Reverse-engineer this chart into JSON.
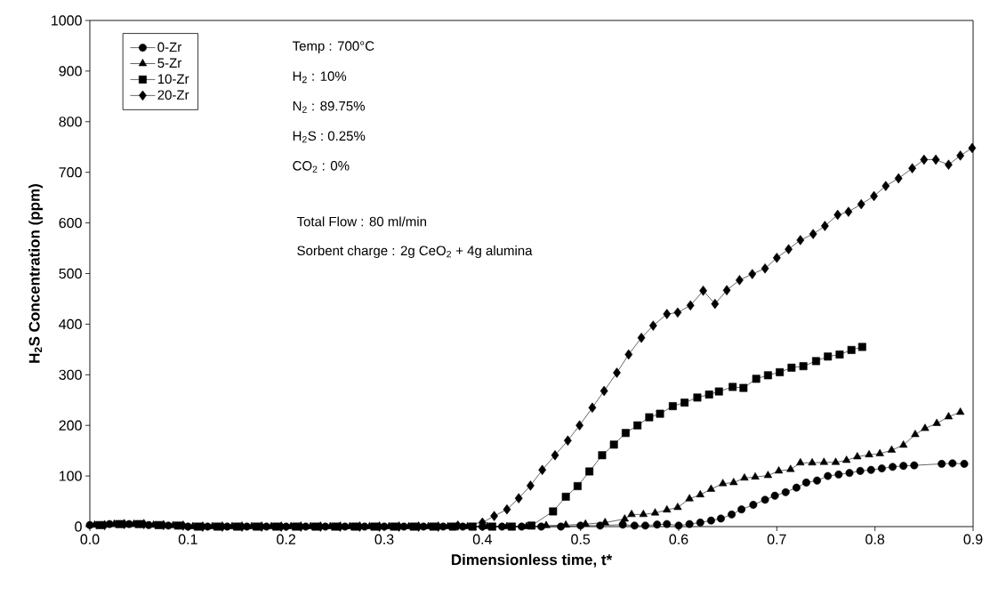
{
  "chart_data": {
    "type": "line",
    "xlabel": "Dimensionless time, t*",
    "ylabel": "H$_{2}$S Concentration (ppm)",
    "xlim": [
      0,
      0.9
    ],
    "ylim": [
      0,
      1000
    ],
    "xticks": [
      {
        "value": 0,
        "label": "0.0"
      },
      0.1,
      0.2,
      0.3,
      0.4,
      0.5,
      0.6,
      0.7,
      0.8,
      0.9
    ],
    "yticks": [
      0,
      100,
      200,
      300,
      400,
      500,
      600,
      700,
      800,
      900,
      1000
    ],
    "grid": false,
    "legend": "top left",
    "annotations": [
      "Temp : 700°C",
      "H$_{2}$ : 10%",
      "N$_{2}$ : 89.75%",
      "H$_{2}$S : 0.25%",
      "CO$_{2}$ : 0%",
      "Total Flow : 80 ml/min",
      "Sorbent charge : 2g CeO$_{2}$ + 4g alumina"
    ],
    "series": [
      {
        "name": "0-Zr",
        "color": "#000000",
        "marker": "circle",
        "x": [
          0,
          0.02,
          0.04,
          0.06,
          0.08,
          0.1,
          0.12,
          0.14,
          0.16,
          0.18,
          0.2,
          0.22,
          0.24,
          0.26,
          0.28,
          0.3,
          0.32,
          0.34,
          0.36,
          0.38,
          0.4,
          0.42,
          0.44,
          0.46,
          0.48,
          0.5,
          0.52,
          0.543,
          0.555,
          0.566,
          0.578,
          0.588,
          0.6,
          0.611,
          0.622,
          0.633,
          0.643,
          0.654,
          0.664,
          0.676,
          0.688,
          0.698,
          0.709,
          0.72,
          0.73,
          0.741,
          0.752,
          0.763,
          0.774,
          0.785,
          0.796,
          0.807,
          0.818,
          0.829,
          0.84,
          0.868,
          0.879,
          0.891
        ],
        "values": [
          3,
          5,
          5,
          3,
          2,
          0,
          0,
          0,
          0,
          0,
          0,
          0,
          0,
          0,
          0,
          0,
          0,
          0,
          0,
          0,
          0,
          0,
          0,
          0,
          0,
          2,
          2,
          4,
          2,
          2,
          4,
          5,
          2,
          5,
          8,
          12,
          16,
          24,
          34,
          43,
          53,
          61,
          68,
          77,
          87,
          91,
          100,
          103,
          106,
          110,
          112,
          115,
          118,
          120,
          121,
          124,
          125,
          124
        ]
      },
      {
        "name": "5-Zr",
        "color": "#000000",
        "marker": "triangle",
        "x": [
          0.005,
          0.025,
          0.045,
          0.065,
          0.085,
          0.105,
          0.125,
          0.145,
          0.165,
          0.185,
          0.205,
          0.225,
          0.245,
          0.265,
          0.285,
          0.305,
          0.325,
          0.345,
          0.365,
          0.385,
          0.405,
          0.425,
          0.445,
          0.465,
          0.485,
          0.505,
          0.525,
          0.545,
          0.552,
          0.564,
          0.576,
          0.588,
          0.599,
          0.611,
          0.622,
          0.633,
          0.645,
          0.656,
          0.667,
          0.678,
          0.691,
          0.702,
          0.714,
          0.724,
          0.736,
          0.748,
          0.76,
          0.771,
          0.782,
          0.794,
          0.805,
          0.817,
          0.829,
          0.841,
          0.851,
          0.863,
          0.875,
          0.887
        ],
        "values": [
          3,
          5,
          5,
          3,
          2,
          0,
          0,
          0,
          0,
          0,
          0,
          0,
          0,
          0,
          0,
          0,
          0,
          0,
          0,
          0,
          0,
          0,
          0,
          2,
          3,
          5,
          8,
          15,
          24,
          24,
          27,
          33,
          38,
          55,
          63,
          74,
          85,
          87,
          96,
          98,
          101,
          110,
          113,
          126,
          126,
          127,
          127,
          131,
          138,
          142,
          144,
          151,
          161,
          182,
          194,
          204,
          217,
          226
        ]
      },
      {
        "name": "10-Zr",
        "color": "#000000",
        "marker": "square",
        "x": [
          0.01,
          0.03,
          0.05,
          0.07,
          0.09,
          0.11,
          0.13,
          0.15,
          0.17,
          0.19,
          0.21,
          0.23,
          0.25,
          0.27,
          0.29,
          0.31,
          0.33,
          0.35,
          0.37,
          0.39,
          0.41,
          0.43,
          0.45,
          0.472,
          0.485,
          0.497,
          0.509,
          0.522,
          0.534,
          0.546,
          0.558,
          0.57,
          0.581,
          0.594,
          0.606,
          0.619,
          0.631,
          0.641,
          0.655,
          0.666,
          0.679,
          0.691,
          0.703,
          0.715,
          0.727,
          0.74,
          0.752,
          0.764,
          0.776,
          0.787
        ],
        "values": [
          3,
          5,
          5,
          3,
          2,
          0,
          0,
          0,
          0,
          0,
          0,
          0,
          0,
          0,
          0,
          0,
          0,
          0,
          0,
          0,
          0,
          0,
          2,
          30,
          59,
          80,
          109,
          141,
          162,
          185,
          200,
          216,
          223,
          238,
          245,
          255,
          261,
          267,
          276,
          274,
          292,
          299,
          305,
          314,
          317,
          327,
          336,
          340,
          349,
          355
        ]
      },
      {
        "name": "20-Zr",
        "color": "#000000",
        "marker": "diamond",
        "x": [
          0.015,
          0.035,
          0.055,
          0.075,
          0.095,
          0.115,
          0.135,
          0.155,
          0.175,
          0.195,
          0.215,
          0.235,
          0.255,
          0.275,
          0.295,
          0.315,
          0.335,
          0.355,
          0.375,
          0.4,
          0.412,
          0.425,
          0.437,
          0.449,
          0.461,
          0.474,
          0.487,
          0.499,
          0.512,
          0.524,
          0.537,
          0.549,
          0.562,
          0.574,
          0.588,
          0.599,
          0.612,
          0.625,
          0.637,
          0.649,
          0.662,
          0.675,
          0.688,
          0.7,
          0.712,
          0.724,
          0.737,
          0.749,
          0.762,
          0.773,
          0.786,
          0.799,
          0.811,
          0.824,
          0.838,
          0.85,
          0.862,
          0.875,
          0.887,
          0.899
        ],
        "values": [
          3,
          5,
          5,
          3,
          2,
          0,
          0,
          0,
          0,
          0,
          0,
          0,
          0,
          0,
          0,
          0,
          0,
          0,
          2,
          8,
          21,
          34,
          56,
          81,
          112,
          141,
          170,
          200,
          235,
          268,
          304,
          340,
          373,
          397,
          420,
          423,
          437,
          466,
          440,
          467,
          487,
          499,
          510,
          531,
          548,
          566,
          578,
          594,
          616,
          622,
          637,
          653,
          673,
          688,
          708,
          725,
          725,
          715,
          733,
          748
        ]
      }
    ]
  }
}
